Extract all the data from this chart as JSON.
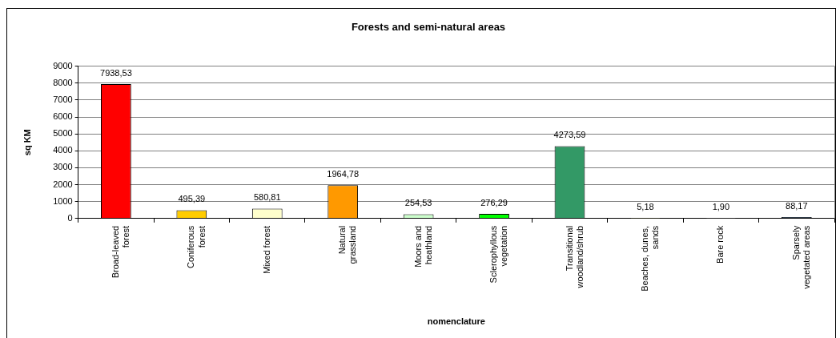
{
  "chart_data": {
    "type": "bar",
    "title": "Forests and semi-natural areas",
    "xlabel": "nomenclature",
    "ylabel": "sq KM",
    "categories": [
      "Broad-leaved forest",
      "Coniferous forest",
      "Mixed forest",
      "Natural grassland",
      "Moors and heathland",
      "Sclerophyllous vegetation",
      "Transitional woodland/shrub",
      "Beaches, dunes, sands",
      "Bare rock",
      "Sparsely vegetated areas"
    ],
    "values": [
      7938.53,
      495.39,
      580.81,
      1964.78,
      254.53,
      276.29,
      4273.59,
      5.18,
      1.9,
      88.17
    ],
    "value_labels": [
      "7938,53",
      "495,39",
      "580,81",
      "1964,78",
      "254,53",
      "276,29",
      "4273,59",
      "5,18",
      "1,90",
      "88,17"
    ],
    "colors": [
      "#ff0000",
      "#ffcc00",
      "#ffffcc",
      "#ff9900",
      "#ccffcc",
      "#00ff00",
      "#339966",
      "#ffff99",
      "#c0c0c0",
      "#003366"
    ],
    "ylim": [
      0,
      9000
    ],
    "yticks": [
      0,
      1000,
      2000,
      3000,
      4000,
      5000,
      6000,
      7000,
      8000,
      9000
    ],
    "grid": "y",
    "legend": false
  }
}
